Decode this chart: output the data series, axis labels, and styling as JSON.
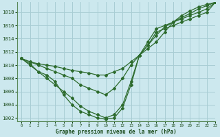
{
  "title": "Graphe pression niveau de la mer (hPa)",
  "background_color": "#cce8ee",
  "plot_bg_color": "#cce8ee",
  "line_color": "#2d6b2d",
  "grid_color": "#a8cdd4",
  "text_color": "#1a4a1a",
  "xlim": [
    -0.5,
    23
  ],
  "ylim": [
    1001.5,
    1019.5
  ],
  "yticks": [
    1002,
    1004,
    1006,
    1008,
    1010,
    1012,
    1014,
    1016,
    1018
  ],
  "xticks": [
    0,
    1,
    2,
    3,
    4,
    5,
    6,
    7,
    8,
    9,
    10,
    11,
    12,
    13,
    14,
    15,
    16,
    17,
    18,
    19,
    20,
    21,
    22,
    23
  ],
  "series": [
    [
      1011.0,
      1010.5,
      1010.2,
      1010.0,
      1009.8,
      1009.5,
      1009.2,
      1009.0,
      1008.8,
      1008.5,
      1008.5,
      1009.0,
      1009.5,
      1010.5,
      1011.5,
      1012.5,
      1013.5,
      1015.0,
      1016.5,
      1017.5,
      1018.2,
      1018.8,
      1019.2,
      1019.5
    ],
    [
      1011.0,
      1010.5,
      1010.0,
      1009.5,
      1009.0,
      1008.5,
      1008.0,
      1007.0,
      1006.5,
      1006.0,
      1005.5,
      1006.5,
      1008.0,
      1010.0,
      1011.5,
      1013.0,
      1014.5,
      1015.8,
      1016.5,
      1017.2,
      1017.8,
      1018.5,
      1019.0,
      1019.5
    ],
    [
      1011.0,
      1010.2,
      1009.0,
      1008.0,
      1007.0,
      1006.0,
      1005.0,
      1003.8,
      1003.0,
      1002.5,
      1002.0,
      1002.5,
      1004.0,
      1007.5,
      1011.5,
      1013.5,
      1015.5,
      1016.0,
      1016.5,
      1017.0,
      1017.5,
      1018.0,
      1018.5,
      1019.5
    ],
    [
      1011.0,
      1010.0,
      1009.0,
      1008.5,
      1007.5,
      1005.5,
      1004.0,
      1003.0,
      1002.5,
      1002.0,
      1001.8,
      1002.0,
      1003.5,
      1007.0,
      1011.5,
      1013.0,
      1015.0,
      1015.5,
      1016.0,
      1016.5,
      1017.0,
      1017.5,
      1018.0,
      1019.5
    ]
  ]
}
